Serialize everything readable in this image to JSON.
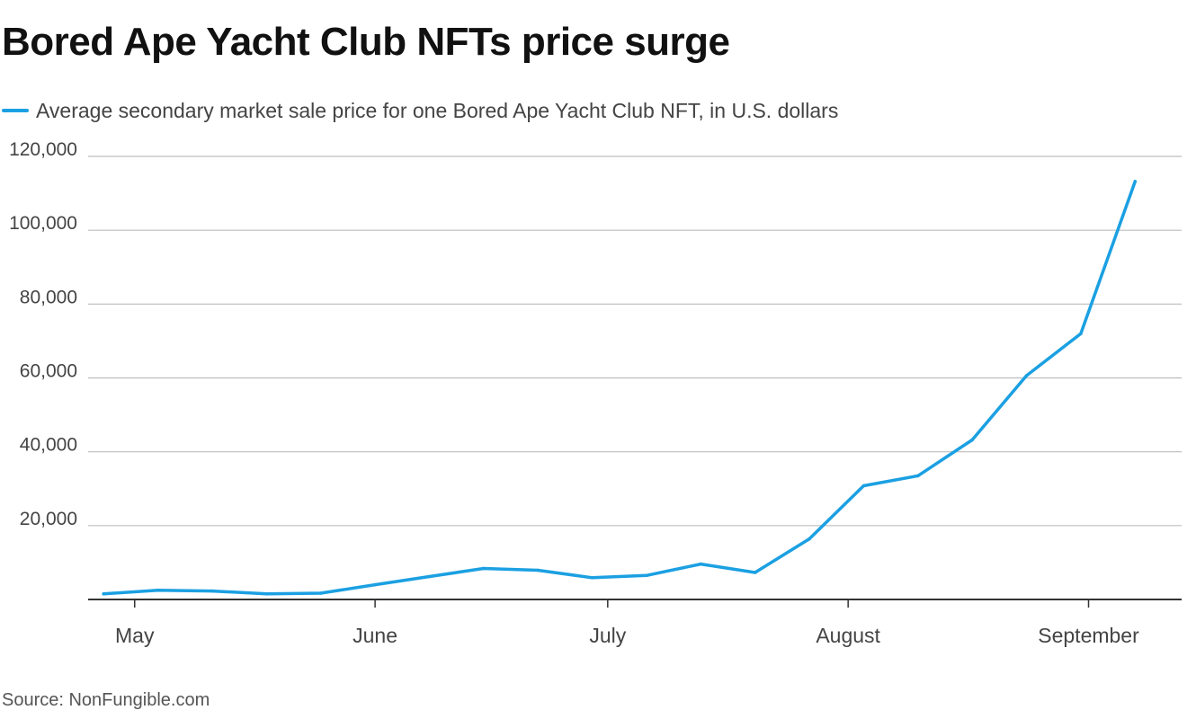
{
  "header": {
    "title": "Bored Ape Yacht Club NFTs price surge"
  },
  "footer": {
    "source": "Source: NonFungible.com"
  },
  "colors": {
    "series": "#1ba0e2",
    "grid": "#bdbdbd",
    "axis": "#333333"
  },
  "chart_data": {
    "type": "line",
    "title": "Bored Ape Yacht Club NFTs price surge",
    "xlabel": "",
    "ylabel": "",
    "ylim": [
      0,
      120000
    ],
    "yticks": [
      20000,
      40000,
      60000,
      80000,
      100000,
      120000
    ],
    "ytick_labels": [
      "20,000",
      "40,000",
      "60,000",
      "80,000",
      "100,000",
      "120,000"
    ],
    "xlim": [
      "2021-04-25",
      "2021-09-13"
    ],
    "xticks": [
      "2021-05-01",
      "2021-06-01",
      "2021-07-01",
      "2021-08-01",
      "2021-09-01"
    ],
    "xtick_labels": [
      "May",
      "June",
      "July",
      "August",
      "September"
    ],
    "grid": true,
    "legend_position": "top-left",
    "series": [
      {
        "name": "Average secondary market sale price for one Bored Ape Yacht Club NFT, in U.S. dollars",
        "x": [
          "2021-04-27",
          "2021-05-04",
          "2021-05-11",
          "2021-05-18",
          "2021-05-25",
          "2021-06-01",
          "2021-06-08",
          "2021-06-15",
          "2021-06-22",
          "2021-06-29",
          "2021-07-06",
          "2021-07-13",
          "2021-07-20",
          "2021-07-27",
          "2021-08-03",
          "2021-08-10",
          "2021-08-17",
          "2021-08-24",
          "2021-08-31",
          "2021-09-07"
        ],
        "values": [
          1500,
          2500,
          2300,
          1500,
          1700,
          4000,
          6200,
          8400,
          7900,
          5900,
          6500,
          9600,
          7300,
          16400,
          30800,
          33500,
          43200,
          60600,
          72000,
          113200
        ]
      }
    ]
  }
}
